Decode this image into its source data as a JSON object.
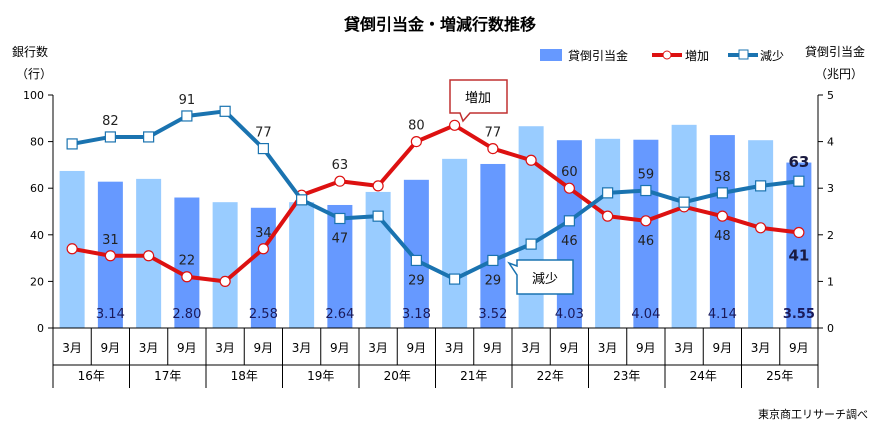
{
  "chart_data": {
    "type": "bar+line",
    "title": "貸倒引当金・増減行数推移",
    "ylabel_left": [
      "銀行数",
      "（行）"
    ],
    "ylabel_right": [
      "貸倒引当金",
      "（兆円）"
    ],
    "ylim_left": [
      0,
      100
    ],
    "yticks_left": [
      0,
      20,
      40,
      60,
      80,
      100
    ],
    "ylim_right": [
      0,
      5
    ],
    "yticks_right": [
      0,
      1,
      2,
      3,
      4,
      5
    ],
    "months": [
      "3月",
      "9月",
      "3月",
      "9月",
      "3月",
      "9月",
      "3月",
      "9月",
      "3月",
      "9月",
      "3月",
      "9月",
      "3月",
      "9月",
      "3月",
      "9月",
      "3月",
      "9月",
      "3月",
      "9月"
    ],
    "years": [
      "16年",
      "17年",
      "18年",
      "19年",
      "20年",
      "21年",
      "22年",
      "23年",
      "24年",
      "25年"
    ],
    "legend": [
      "貸倒引当金",
      "増加",
      "減少"
    ],
    "legend_position": "top-right",
    "series": [
      {
        "name": "貸倒引当金",
        "axis": "right",
        "type": "bar",
        "values": [
          3.37,
          3.14,
          3.2,
          2.8,
          2.7,
          2.58,
          2.7,
          2.64,
          2.92,
          3.18,
          3.63,
          3.52,
          4.33,
          4.03,
          4.06,
          4.04,
          4.36,
          4.14,
          4.03,
          3.55
        ],
        "labels": [
          "",
          "3.14",
          "",
          "2.80",
          "",
          "2.58",
          "",
          "2.64",
          "",
          "3.18",
          "",
          "3.52",
          "",
          "4.03",
          "",
          "4.04",
          "",
          "4.14",
          "",
          "3.55"
        ]
      },
      {
        "name": "増加",
        "axis": "left",
        "type": "line",
        "values": [
          34,
          31,
          31,
          22,
          20,
          34,
          57,
          63,
          61,
          80,
          87,
          77,
          72,
          60,
          48,
          46,
          52,
          48,
          43,
          41
        ],
        "labels": [
          "",
          "31",
          "",
          "22",
          "",
          "34",
          "",
          "63",
          "",
          "80",
          "",
          "77",
          "",
          "60",
          "",
          "46",
          "",
          "48",
          "",
          "41"
        ]
      },
      {
        "name": "減少",
        "axis": "left",
        "type": "line",
        "values": [
          79,
          82,
          82,
          91,
          93,
          77,
          55,
          47,
          48,
          29,
          21,
          29,
          36,
          46,
          58,
          59,
          54,
          58,
          61,
          63
        ],
        "labels": [
          "",
          "82",
          "",
          "91",
          "",
          "77",
          "",
          "47",
          "",
          "29",
          "",
          "29",
          "",
          "46",
          "",
          "59",
          "",
          "58",
          "",
          "63"
        ]
      }
    ],
    "annotations": [
      "増加",
      "減少"
    ],
    "source": "東京商工リサーチ調べ"
  },
  "colors": {
    "bar_march": "#99CCFF",
    "bar_sept": "#6699FF",
    "increase": "#DD1111",
    "decrease": "#1A73B0"
  }
}
